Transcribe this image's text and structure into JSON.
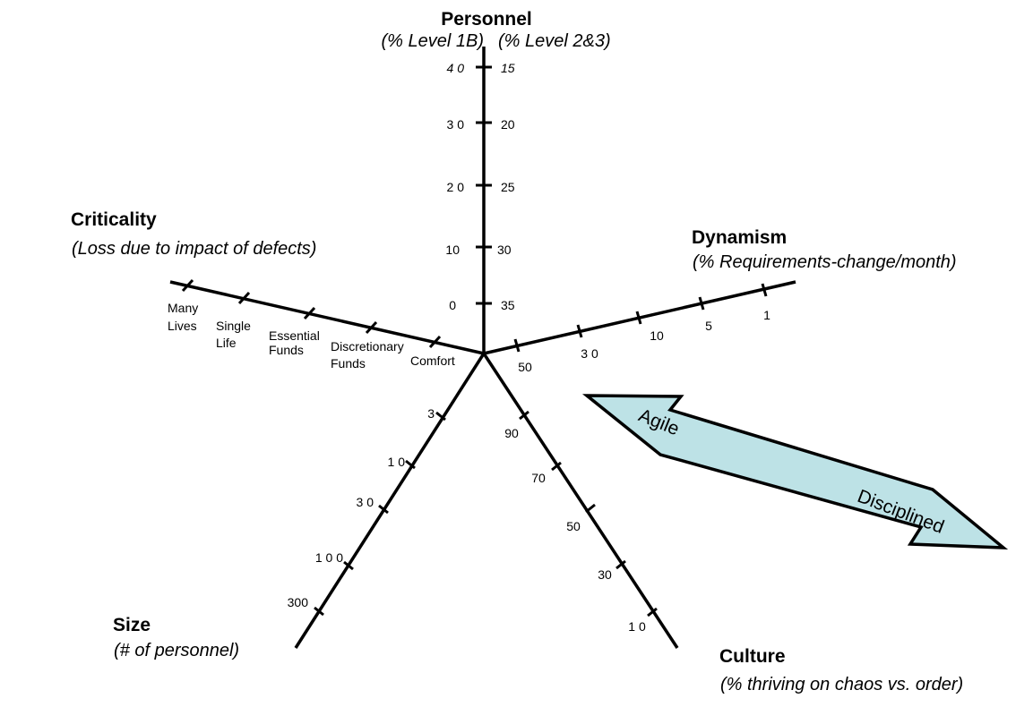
{
  "axes": {
    "personnel": {
      "title": "Personnel",
      "subtitle_left": "(% Level 1B)",
      "subtitle_right": "(% Level 2&3)",
      "left_ticks": [
        "4 0",
        "3 0",
        "2 0",
        "10",
        "0"
      ],
      "right_ticks": [
        "15",
        "20",
        "25",
        "30",
        "35"
      ]
    },
    "dynamism": {
      "title": "Dynamism",
      "subtitle": "(% Requirements-change/month)",
      "ticks": [
        "50",
        "3 0",
        "10",
        "5",
        "1"
      ]
    },
    "criticality": {
      "title": "Criticality",
      "subtitle": "(Loss due to impact of defects)",
      "ticks": [
        {
          "line1": "Many",
          "line2": "Lives"
        },
        {
          "line1": "Single",
          "line2": "Life"
        },
        {
          "line1": "Essential",
          "line2": "Funds"
        },
        {
          "line1": "Discretionary",
          "line2": "Funds"
        },
        {
          "line1": "Comfort",
          "line2": ""
        }
      ]
    },
    "size": {
      "title": "Size",
      "subtitle": "(# of personnel)",
      "ticks": [
        "3",
        "1 0",
        "3 0",
        "1 0 0",
        "300"
      ]
    },
    "culture": {
      "title": "Culture",
      "subtitle": "(% thriving on chaos vs. order)",
      "ticks": [
        "90",
        "70",
        "50",
        "30",
        "1 0"
      ]
    }
  },
  "arrow": {
    "left_label": "Agile",
    "right_label": "Disciplined",
    "fill_color": "#bde2e6",
    "stroke_color": "#000000"
  }
}
